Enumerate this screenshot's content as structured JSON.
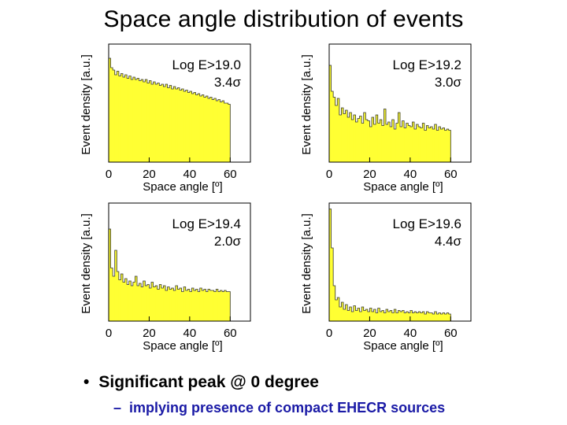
{
  "title": "Space angle distribution of events",
  "bullets": {
    "main": "Significant peak @ 0 degree",
    "main_marker": "•",
    "sub": "implying presence of compact EHECR sources",
    "sub_marker": "–"
  },
  "colors": {
    "fill": "#ffff33",
    "outline": "#333333",
    "frame": "#000000"
  },
  "chart_data": [
    {
      "type": "bar",
      "title": "Log E>19.0",
      "significance": "3.4σ",
      "xlabel": "Space angle [º]",
      "ylabel": "Event density [a.u.]",
      "xticks": [
        "0",
        "20",
        "40",
        "60"
      ],
      "xlim": [
        0,
        70
      ],
      "ylim": [
        0,
        1
      ],
      "values": [
        0.88,
        0.8,
        0.78,
        0.74,
        0.77,
        0.73,
        0.75,
        0.72,
        0.74,
        0.71,
        0.73,
        0.7,
        0.72,
        0.7,
        0.71,
        0.69,
        0.7,
        0.68,
        0.7,
        0.67,
        0.69,
        0.66,
        0.68,
        0.66,
        0.67,
        0.65,
        0.66,
        0.64,
        0.66,
        0.63,
        0.65,
        0.62,
        0.64,
        0.62,
        0.63,
        0.61,
        0.62,
        0.6,
        0.61,
        0.59,
        0.6,
        0.58,
        0.59,
        0.57,
        0.58,
        0.56,
        0.57,
        0.55,
        0.56,
        0.54,
        0.55,
        0.53,
        0.54,
        0.52,
        0.53,
        0.51,
        0.52,
        0.5,
        0.5,
        0.49
      ]
    },
    {
      "type": "bar",
      "title": "Log E>19.2",
      "significance": "3.0σ",
      "xlabel": "Space angle [º]",
      "ylabel": "Event density [a.u.]",
      "xticks": [
        "0",
        "20",
        "40",
        "60"
      ],
      "xlim": [
        0,
        70
      ],
      "ylim": [
        0,
        1
      ],
      "values": [
        0.82,
        0.6,
        0.55,
        0.48,
        0.54,
        0.4,
        0.46,
        0.41,
        0.44,
        0.38,
        0.42,
        0.36,
        0.4,
        0.34,
        0.37,
        0.39,
        0.33,
        0.42,
        0.36,
        0.35,
        0.3,
        0.38,
        0.32,
        0.4,
        0.33,
        0.36,
        0.31,
        0.45,
        0.32,
        0.34,
        0.3,
        0.36,
        0.28,
        0.33,
        0.42,
        0.3,
        0.35,
        0.29,
        0.33,
        0.31,
        0.3,
        0.34,
        0.28,
        0.32,
        0.3,
        0.29,
        0.33,
        0.27,
        0.31,
        0.29,
        0.3,
        0.28,
        0.32,
        0.27,
        0.3,
        0.28,
        0.29,
        0.27,
        0.28,
        0.27
      ]
    },
    {
      "type": "bar",
      "title": "Log E>19.4",
      "significance": "2.0σ",
      "xlabel": "Space angle [º]",
      "ylabel": "Event density [a.u.]",
      "xticks": [
        "0",
        "20",
        "40",
        "60"
      ],
      "xlim": [
        0,
        70
      ],
      "ylim": [
        0,
        1
      ],
      "values": [
        0.78,
        0.45,
        0.38,
        0.6,
        0.42,
        0.35,
        0.4,
        0.33,
        0.36,
        0.31,
        0.34,
        0.3,
        0.33,
        0.38,
        0.3,
        0.32,
        0.29,
        0.34,
        0.3,
        0.31,
        0.28,
        0.33,
        0.29,
        0.3,
        0.27,
        0.31,
        0.28,
        0.3,
        0.26,
        0.29,
        0.27,
        0.28,
        0.26,
        0.3,
        0.27,
        0.28,
        0.25,
        0.29,
        0.26,
        0.27,
        0.25,
        0.28,
        0.26,
        0.27,
        0.25,
        0.28,
        0.26,
        0.27,
        0.25,
        0.27,
        0.26,
        0.26,
        0.25,
        0.27,
        0.25,
        0.26,
        0.25,
        0.26,
        0.25,
        0.25
      ]
    },
    {
      "type": "bar",
      "title": "Log E>19.6",
      "significance": "4.4σ",
      "xlabel": "Space angle [º]",
      "ylabel": "Event density [a.u.]",
      "xticks": [
        "0",
        "20",
        "40",
        "60"
      ],
      "xlim": [
        0,
        70
      ],
      "ylim": [
        0,
        1
      ],
      "values": [
        0.95,
        0.62,
        0.3,
        0.18,
        0.2,
        0.12,
        0.16,
        0.1,
        0.14,
        0.09,
        0.12,
        0.08,
        0.13,
        0.09,
        0.11,
        0.08,
        0.12,
        0.09,
        0.1,
        0.08,
        0.11,
        0.08,
        0.1,
        0.07,
        0.11,
        0.08,
        0.09,
        0.07,
        0.1,
        0.08,
        0.09,
        0.07,
        0.1,
        0.07,
        0.09,
        0.08,
        0.09,
        0.07,
        0.08,
        0.07,
        0.09,
        0.07,
        0.08,
        0.07,
        0.08,
        0.07,
        0.08,
        0.06,
        0.08,
        0.07,
        0.07,
        0.06,
        0.08,
        0.06,
        0.07,
        0.06,
        0.07,
        0.06,
        0.07,
        0.06
      ]
    }
  ]
}
